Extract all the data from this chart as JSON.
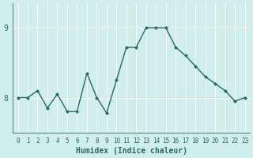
{
  "xlabel": "Humidex (Indice chaleur)",
  "x": [
    0,
    1,
    2,
    3,
    4,
    5,
    6,
    7,
    8,
    9,
    10,
    11,
    12,
    13,
    14,
    15,
    16,
    17,
    18,
    19,
    20,
    21,
    22,
    23
  ],
  "y": [
    8.0,
    8.0,
    8.1,
    7.85,
    8.05,
    7.8,
    7.8,
    8.35,
    8.0,
    7.78,
    8.25,
    8.72,
    8.72,
    9.0,
    9.0,
    9.0,
    8.72,
    8.6,
    8.45,
    8.3,
    8.2,
    8.1,
    7.95,
    8.0
  ],
  "ylim": [
    7.5,
    9.35
  ],
  "xlim": [
    -0.5,
    23.5
  ],
  "yticks": [
    8,
    9
  ],
  "bg_color": "#d0eeea",
  "line_color": "#2a6b5e",
  "marker_color": "#2a6b5e",
  "grid_color": "#ffffff",
  "tick_label_color": "#2a6b5e",
  "axis_color": "#5a8a80",
  "xlabel_fontsize": 7,
  "ytick_fontsize": 7,
  "xtick_fontsize": 5.5
}
